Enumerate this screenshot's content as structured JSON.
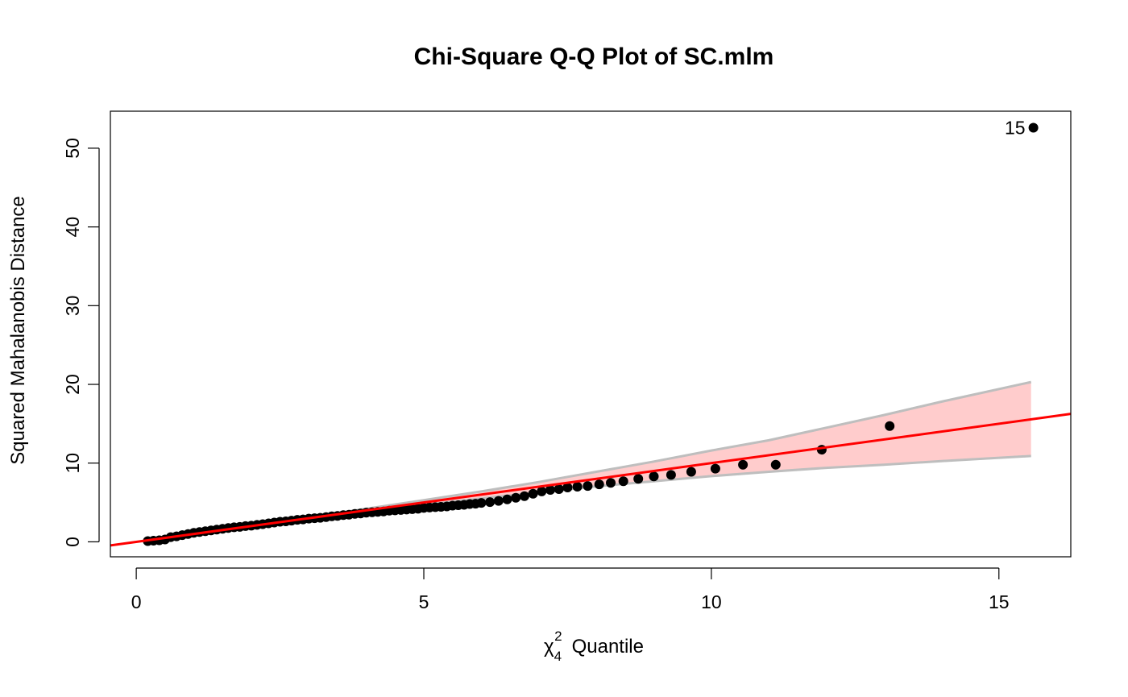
{
  "chart_data": {
    "type": "scatter",
    "title": "Chi-Square Q-Q Plot of SC.mlm",
    "xlabel": {
      "symbol": "χ",
      "sub": "4",
      "sup": "2",
      "text": "Quantile"
    },
    "ylabel": "Squared Mahalanobis Distance",
    "xlim": [
      -0.45,
      16.25
    ],
    "ylim": [
      -1.9,
      54.7
    ],
    "xticks": [
      0,
      5,
      10,
      15
    ],
    "yticks": [
      0,
      10,
      20,
      30,
      40,
      50
    ],
    "grid": false,
    "colors": {
      "points": "#000000",
      "reference_line": "#ff0000",
      "envelope_fill": "#ffcccc",
      "envelope_border": "#bebebe"
    },
    "reference_line": {
      "intercept": 0.0,
      "slope": 1.0
    },
    "envelope": {
      "x": [
        3.0,
        4.0,
        5.0,
        6.0,
        7.0,
        8.0,
        9.0,
        10.0,
        11.0,
        12.0,
        13.0,
        14.0,
        15.56
      ],
      "lower": [
        3.0,
        3.85,
        4.7,
        5.5,
        6.3,
        7.05,
        7.7,
        8.35,
        8.9,
        9.4,
        9.8,
        10.25,
        10.9
      ],
      "upper": [
        3.1,
        4.2,
        5.3,
        6.4,
        7.6,
        8.9,
        10.2,
        11.6,
        12.9,
        14.5,
        16.1,
        17.8,
        20.3
      ]
    },
    "points": {
      "x": [
        0.2,
        0.3,
        0.4,
        0.5,
        0.6,
        0.7,
        0.8,
        0.9,
        1.0,
        1.1,
        1.2,
        1.3,
        1.4,
        1.5,
        1.6,
        1.7,
        1.8,
        1.9,
        2.0,
        2.1,
        2.2,
        2.3,
        2.4,
        2.5,
        2.6,
        2.7,
        2.8,
        2.9,
        3.0,
        3.1,
        3.2,
        3.3,
        3.4,
        3.5,
        3.6,
        3.7,
        3.8,
        3.9,
        4.0,
        4.1,
        4.2,
        4.3,
        4.4,
        4.5,
        4.6,
        4.7,
        4.8,
        4.9,
        5.0,
        5.1,
        5.2,
        5.3,
        5.4,
        5.5,
        5.6,
        5.7,
        5.8,
        5.9,
        6.0,
        6.15,
        6.3,
        6.45,
        6.6,
        6.75,
        6.9,
        7.05,
        7.2,
        7.35,
        7.5,
        7.67,
        7.85,
        8.05,
        8.25,
        8.47,
        8.73,
        9.0,
        9.3,
        9.65,
        10.07,
        10.55,
        11.12,
        11.92,
        13.1,
        15.6
      ],
      "y": [
        0.1,
        0.15,
        0.2,
        0.3,
        0.6,
        0.7,
        0.85,
        1.0,
        1.15,
        1.25,
        1.35,
        1.45,
        1.55,
        1.65,
        1.75,
        1.85,
        1.9,
        2.0,
        2.05,
        2.15,
        2.25,
        2.35,
        2.45,
        2.55,
        2.6,
        2.7,
        2.8,
        2.85,
        2.95,
        3.0,
        3.05,
        3.15,
        3.25,
        3.3,
        3.4,
        3.45,
        3.55,
        3.6,
        3.7,
        3.75,
        3.8,
        3.85,
        3.95,
        4.0,
        4.05,
        4.1,
        4.15,
        4.2,
        4.3,
        4.35,
        4.4,
        4.45,
        4.5,
        4.6,
        4.65,
        4.7,
        4.8,
        4.85,
        4.95,
        5.05,
        5.2,
        5.4,
        5.6,
        5.8,
        6.1,
        6.4,
        6.6,
        6.7,
        6.9,
        7.0,
        7.1,
        7.3,
        7.5,
        7.7,
        8.0,
        8.3,
        8.5,
        8.9,
        9.3,
        9.8,
        9.8,
        11.7,
        14.7,
        52.6
      ]
    },
    "annotations": [
      {
        "text": "15",
        "x": 15.6,
        "y": 52.6
      }
    ]
  }
}
